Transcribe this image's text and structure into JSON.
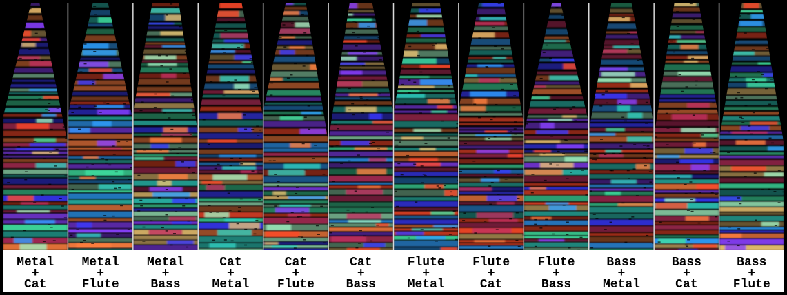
{
  "panels": [
    {
      "lines": [
        "Metal",
        "+",
        "Cat"
      ]
    },
    {
      "lines": [
        "Metal",
        "+",
        "Flute"
      ]
    },
    {
      "lines": [
        "Metal",
        "+",
        "Bass"
      ]
    },
    {
      "lines": [
        "Cat",
        "+",
        "Metal"
      ]
    },
    {
      "lines": [
        "Cat",
        "+",
        "Flute"
      ]
    },
    {
      "lines": [
        "Cat",
        "+",
        "Bass"
      ]
    },
    {
      "lines": [
        "Flute",
        "+",
        "Metal"
      ]
    },
    {
      "lines": [
        "Flute",
        "+",
        "Cat"
      ]
    },
    {
      "lines": [
        "Flute",
        "+",
        "Bass"
      ]
    },
    {
      "lines": [
        "Bass",
        "+",
        "Metal"
      ]
    },
    {
      "lines": [
        "Bass",
        "+",
        "Cat"
      ]
    },
    {
      "lines": [
        "Bass",
        "+",
        "Flute"
      ]
    }
  ]
}
